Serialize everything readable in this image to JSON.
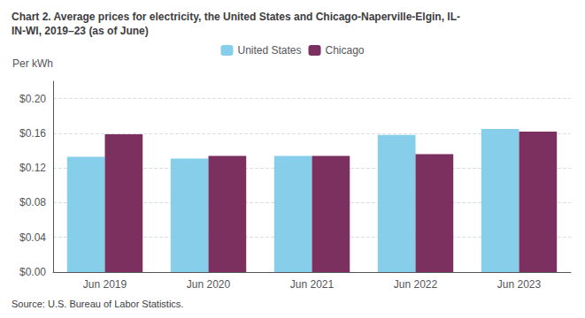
{
  "chart_data": {
    "type": "bar",
    "title": "Chart 2. Average prices for electricity, the United States and Chicago-Naperville-Elgin, IL-\nIN-WI, 2019–23 (as of June)",
    "y_label": "Per kWh",
    "source": "Source: U.S. Bureau of Labor Statistics.",
    "categories": [
      "Jun 2019",
      "Jun 2020",
      "Jun 2021",
      "Jun 2022",
      "Jun 2023"
    ],
    "series": [
      {
        "name": "United States",
        "color": "#87CEEB",
        "values": [
          0.133,
          0.131,
          0.134,
          0.158,
          0.165
        ]
      },
      {
        "name": "Chicago",
        "color": "#7B3060",
        "values": [
          0.159,
          0.134,
          0.134,
          0.136,
          0.162
        ]
      }
    ],
    "ylim": [
      0.0,
      0.22
    ],
    "yticks": [
      {
        "value": 0.0,
        "label": "$0.00"
      },
      {
        "value": 0.04,
        "label": "$0.04"
      },
      {
        "value": 0.08,
        "label": "$0.08"
      },
      {
        "value": 0.12,
        "label": "$0.12"
      },
      {
        "value": 0.16,
        "label": "$0.16"
      },
      {
        "value": 0.2,
        "label": "$0.20"
      }
    ],
    "grid": true,
    "legend": "top"
  }
}
